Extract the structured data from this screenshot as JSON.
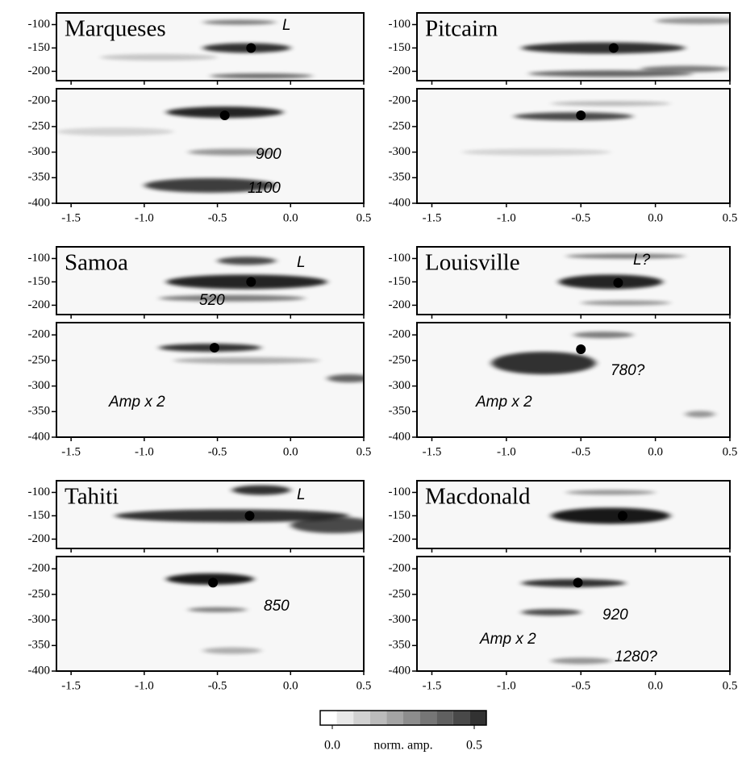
{
  "chart_data": {
    "type": "image-panels",
    "xlim": [
      -1.6,
      0.5
    ],
    "xticks": [
      -1.5,
      {
        "value": -1.0,
        "label": "-1.0"
      },
      -0.5,
      {
        "value": 0.0,
        "label": "0.0"
      },
      0.5
    ],
    "upper_ylim": [
      -220,
      -75
    ],
    "upper_yticks": [
      -100,
      -150,
      -200
    ],
    "lower_ylim": [
      -400,
      -176
    ],
    "lower_yticks": [
      -200,
      -250,
      -300,
      -350,
      -400
    ],
    "panels": [
      {
        "name": "Marqueses",
        "upper": {
          "dot": {
            "x": -0.27,
            "y": -150
          },
          "annotations": [
            "L"
          ]
        },
        "lower": {
          "dot": {
            "x": -0.45,
            "y": -228
          },
          "annotations": [
            "900",
            "1100"
          ]
        }
      },
      {
        "name": "Pitcairn",
        "upper": {
          "dot": {
            "x": -0.28,
            "y": -150
          },
          "annotations": []
        },
        "lower": {
          "dot": {
            "x": -0.5,
            "y": -228
          },
          "annotations": []
        }
      },
      {
        "name": "Samoa",
        "upper": {
          "dot": {
            "x": -0.27,
            "y": -150
          },
          "annotations": [
            "L",
            "520"
          ]
        },
        "lower": {
          "dot": {
            "x": -0.52,
            "y": -225
          },
          "annotations": [
            "Amp x 2"
          ]
        }
      },
      {
        "name": "Louisville",
        "upper": {
          "dot": {
            "x": -0.25,
            "y": -152
          },
          "annotations": [
            "L?"
          ]
        },
        "lower": {
          "dot": {
            "x": -0.5,
            "y": -228
          },
          "annotations": [
            "780?",
            "Amp x 2"
          ]
        }
      },
      {
        "name": "Tahiti",
        "upper": {
          "dot": {
            "x": -0.28,
            "y": -150
          },
          "annotations": [
            "L"
          ]
        },
        "lower": {
          "dot": {
            "x": -0.53,
            "y": -227
          },
          "annotations": [
            "850"
          ]
        }
      },
      {
        "name": "Macdonald",
        "upper": {
          "dot": {
            "x": -0.22,
            "y": -150
          },
          "annotations": []
        },
        "lower": {
          "dot": {
            "x": -0.52,
            "y": -227
          },
          "annotations": [
            "920",
            "Amp x 2",
            "1280?"
          ]
        }
      }
    ],
    "colorbar": {
      "label": "norm. amp.",
      "ticks": [
        {
          "value": 0,
          "label": "0.0"
        },
        0.5
      ]
    }
  }
}
